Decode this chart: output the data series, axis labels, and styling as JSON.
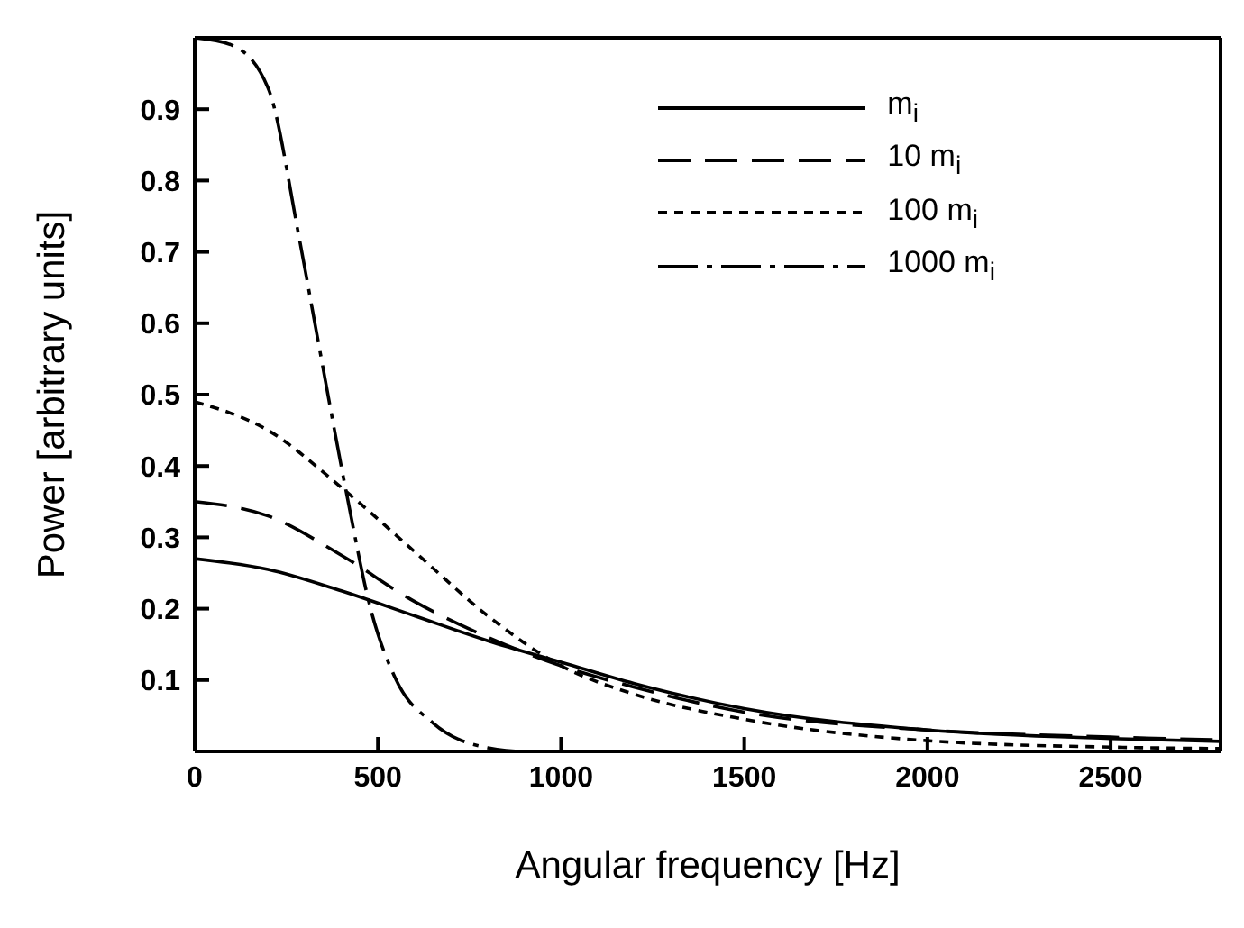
{
  "chart_data": {
    "type": "line",
    "xlabel": "Angular frequency [Hz]",
    "ylabel": "Power [arbitrary units]",
    "xlim": [
      0,
      2800
    ],
    "xticks": [
      0,
      500,
      1000,
      1500,
      2000,
      2500
    ],
    "ylim": [
      0,
      1
    ],
    "yticks": [
      0.1,
      0.2,
      0.3,
      0.4,
      0.5,
      0.6,
      0.7,
      0.8,
      0.9
    ],
    "grid": false,
    "legend": "top right",
    "marker": "none",
    "series": [
      {
        "name": "m$_{i}$",
        "color": "#000000",
        "line_style": "solid",
        "x": [
          0,
          200,
          400,
          600,
          800,
          1000,
          1200,
          1500,
          2000,
          2500,
          2800
        ],
        "values": [
          0.27,
          0.255,
          0.225,
          0.19,
          0.155,
          0.125,
          0.095,
          0.06,
          0.03,
          0.018,
          0.014
        ]
      },
      {
        "name": "10 m$_{i}$",
        "color": "#000000",
        "line_style": "dashed",
        "x": [
          0,
          200,
          400,
          600,
          800,
          1000,
          1200,
          1500,
          2000,
          2500,
          2800
        ],
        "values": [
          0.35,
          0.33,
          0.275,
          0.21,
          0.16,
          0.12,
          0.09,
          0.055,
          0.03,
          0.02,
          0.016
        ]
      },
      {
        "name": "100 m$_{i}$",
        "color": "#000000",
        "line_style": "dotted",
        "x": [
          0,
          200,
          400,
          600,
          800,
          1000,
          1200,
          1500,
          2000,
          2500,
          2800
        ],
        "values": [
          0.49,
          0.45,
          0.37,
          0.28,
          0.19,
          0.12,
          0.08,
          0.045,
          0.015,
          0.006,
          0.004
        ]
      },
      {
        "name": "1000 m$_{i}$",
        "color": "#000000",
        "line_style": "dashdot",
        "x": [
          0,
          100,
          200,
          285,
          335,
          415,
          480,
          550,
          650,
          800,
          900,
          1500,
          2000,
          2800
        ],
        "values": [
          1.0,
          0.99,
          0.93,
          0.72,
          0.58,
          0.36,
          0.2,
          0.1,
          0.04,
          0.005,
          0,
          0,
          0,
          0
        ]
      }
    ]
  }
}
